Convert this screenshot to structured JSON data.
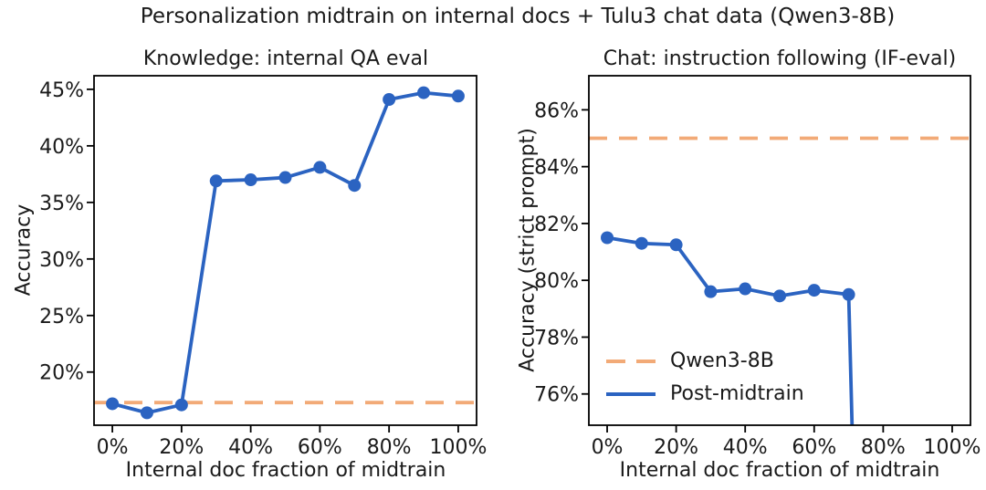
{
  "figure": {
    "title": "Personalization midtrain on internal docs + Tulu3 chat data (Qwen3-8B)"
  },
  "colors": {
    "series_blue": "#2b63c1",
    "baseline_orange": "#f2aa77",
    "text": "#1a1a1a",
    "background": "#ffffff",
    "spine": "#000000"
  },
  "chart_data": [
    {
      "type": "line",
      "title": "Knowledge: internal QA eval",
      "xlabel": "Internal doc fraction of midtrain",
      "ylabel": "Accuracy",
      "x": [
        0,
        10,
        20,
        30,
        40,
        50,
        60,
        70,
        80,
        90,
        100
      ],
      "xlim": [
        -5.3,
        105.3
      ],
      "ylim": [
        15.3,
        46.2
      ],
      "xticks": {
        "values": [
          0,
          20,
          40,
          60,
          80,
          100
        ],
        "labels": [
          "0%",
          "20%",
          "40%",
          "60%",
          "80%",
          "100%"
        ]
      },
      "yticks": {
        "values": [
          20,
          25,
          30,
          35,
          40,
          45
        ],
        "labels": [
          "20%",
          "25%",
          "30%",
          "35%",
          "40%",
          "45%"
        ]
      },
      "grid": false,
      "legend": null,
      "series": [
        {
          "name": "Qwen3-8B",
          "style": "dashed",
          "color_key": "baseline_orange",
          "markers": false,
          "baseline_value": 17.3
        },
        {
          "name": "Post-midtrain",
          "style": "solid",
          "color_key": "series_blue",
          "markers": true,
          "values": [
            17.2,
            16.4,
            17.1,
            36.9,
            37.0,
            37.2,
            38.1,
            36.5,
            44.1,
            44.7,
            44.4
          ]
        }
      ]
    },
    {
      "type": "line",
      "title": "Chat: instruction following (IF-eval)",
      "xlabel": "Internal doc fraction of midtrain",
      "ylabel": "Accuracy (strict prompt)",
      "x": [
        0,
        10,
        20,
        30,
        40,
        50,
        60,
        70,
        80,
        90,
        100
      ],
      "xlim": [
        -5.3,
        105.3
      ],
      "ylim": [
        74.9,
        87.2
      ],
      "xticks": {
        "values": [
          0,
          20,
          40,
          60,
          80,
          100
        ],
        "labels": [
          "0%",
          "20%",
          "40%",
          "60%",
          "80%",
          "100%"
        ]
      },
      "yticks": {
        "values": [
          76,
          78,
          80,
          82,
          84,
          86
        ],
        "labels": [
          "76%",
          "78%",
          "80%",
          "82%",
          "84%",
          "86%"
        ]
      },
      "grid": false,
      "note": "Post-midtrain line drops below the visible y-axis range after x=70%",
      "legend": {
        "position": "lower-left-inside",
        "frame": false,
        "entries": [
          {
            "label": "Qwen3-8B",
            "style": "dashed",
            "color_key": "baseline_orange"
          },
          {
            "label": "Post-midtrain",
            "style": "solid",
            "color_key": "series_blue"
          }
        ]
      },
      "series": [
        {
          "name": "Qwen3-8B",
          "style": "dashed",
          "color_key": "baseline_orange",
          "markers": false,
          "baseline_value": 85.0
        },
        {
          "name": "Post-midtrain",
          "style": "solid",
          "color_key": "series_blue",
          "markers": true,
          "values": [
            81.5,
            81.3,
            81.25,
            79.6,
            79.7,
            79.45,
            79.65,
            79.5,
            null,
            null,
            null
          ],
          "offscale_drop_after_last_point": true
        }
      ]
    }
  ]
}
